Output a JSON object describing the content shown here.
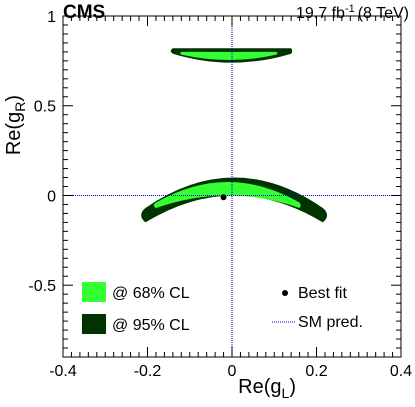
{
  "chart_data": {
    "type": "contour",
    "experiment": "CMS",
    "luminosity": "19.7 fb",
    "luminosity_exponent": "-1",
    "energy": "(8 TeV)",
    "xlabel": {
      "base": "Re(g",
      "sub": "L",
      "close": ")"
    },
    "ylabel": {
      "base": "Re(g",
      "sub": "R",
      "close": ")"
    },
    "xlim": [
      -0.4,
      0.4
    ],
    "ylim": [
      -0.9,
      1.0
    ],
    "x_ticks": [
      -0.4,
      -0.2,
      0,
      0.2,
      0.4
    ],
    "x_tick_labels": [
      "-0.4",
      "-0.2",
      "0",
      "0.2",
      "0.4"
    ],
    "y_ticks": [
      -0.5,
      0,
      0.5,
      1
    ],
    "y_tick_labels": [
      "-0.5",
      "0",
      "0.5",
      "1"
    ],
    "best_fit": {
      "x": -0.02,
      "y": -0.01
    },
    "sm_prediction": {
      "x": 0,
      "y": 0
    },
    "regions": [
      {
        "name": "lower_band",
        "x_range_95": [
          -0.22,
          0.23
        ],
        "x_range_68": [
          -0.19,
          0.155
        ],
        "center_y_95": 0.0,
        "center_y_68": 0.0
      },
      {
        "name": "upper_band",
        "x_range_95": [
          -0.145,
          0.14
        ],
        "x_range_68": [
          -0.12,
          0.11
        ],
        "center_y_95": 0.78,
        "center_y_68": 0.78
      }
    ],
    "legend": [
      {
        "label": "@ 68% CL",
        "color": "#33ff33"
      },
      {
        "label": "@ 95% CL",
        "color": "#003300"
      },
      {
        "label": "Best fit",
        "marker": "dot"
      },
      {
        "label": "SM pred.",
        "marker": "dotted-line"
      }
    ],
    "colors": {
      "cl68": "#33ff33",
      "cl95": "#003300",
      "sm_line": "#0000cc",
      "frame": "#000000"
    },
    "grid": false
  }
}
